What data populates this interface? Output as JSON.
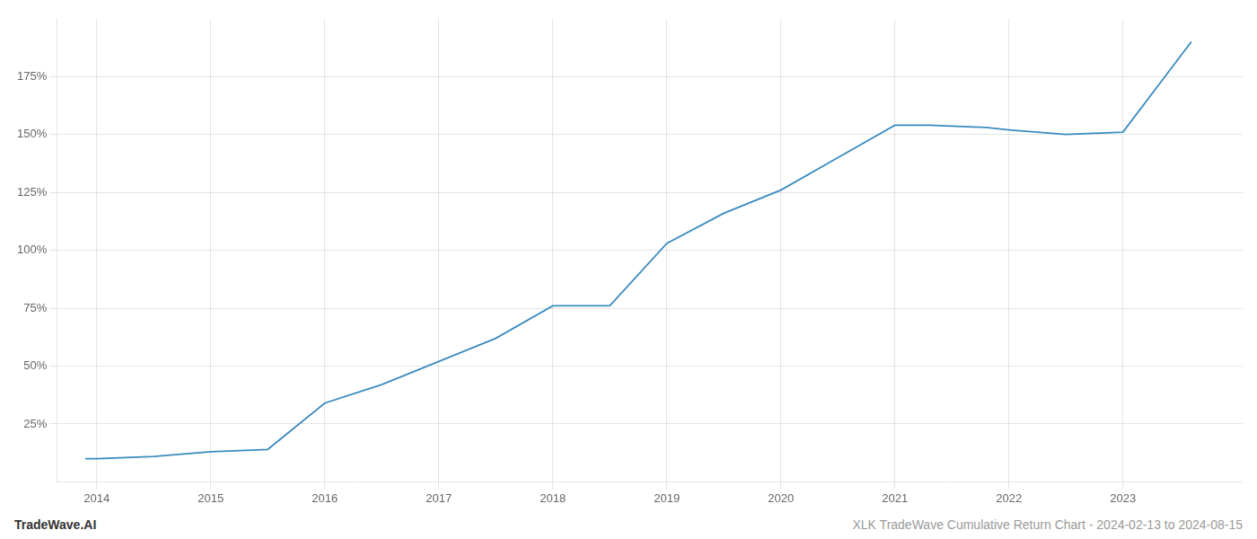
{
  "chart_data": {
    "type": "line",
    "title": "XLK TradeWave Cumulative Return Chart - 2024-02-13 to 2024-08-15",
    "annotations": [
      "TradeWave.AI"
    ],
    "x": [
      2013.9,
      2014.0,
      2014.5,
      2015.0,
      2015.5,
      2016.0,
      2016.5,
      2017.0,
      2017.5,
      2018.0,
      2018.5,
      2019.0,
      2019.5,
      2020.0,
      2020.5,
      2021.0,
      2021.3,
      2021.8,
      2022.0,
      2022.5,
      2023.0,
      2023.6
    ],
    "values": [
      10,
      10,
      11,
      13,
      14,
      34,
      42,
      52,
      62,
      76,
      76,
      103,
      116,
      126,
      140,
      154,
      154,
      153,
      152,
      150,
      151,
      190
    ],
    "color": "#3a8bbf",
    "xlim": [
      2013.65,
      2024.05
    ],
    "ylim": [
      0,
      200
    ],
    "xticks": [
      2014,
      2015,
      2016,
      2017,
      2018,
      2019,
      2020,
      2021,
      2022,
      2023
    ],
    "yticks": [
      {
        "value": 25,
        "label": "25%"
      },
      {
        "value": 50,
        "label": "50%"
      },
      {
        "value": 75,
        "label": "75%"
      },
      {
        "value": 100,
        "label": "100%"
      },
      {
        "value": 125,
        "label": "125%"
      },
      {
        "value": 150,
        "label": "150%"
      },
      {
        "value": 175,
        "label": "175%"
      }
    ],
    "grid": true
  }
}
